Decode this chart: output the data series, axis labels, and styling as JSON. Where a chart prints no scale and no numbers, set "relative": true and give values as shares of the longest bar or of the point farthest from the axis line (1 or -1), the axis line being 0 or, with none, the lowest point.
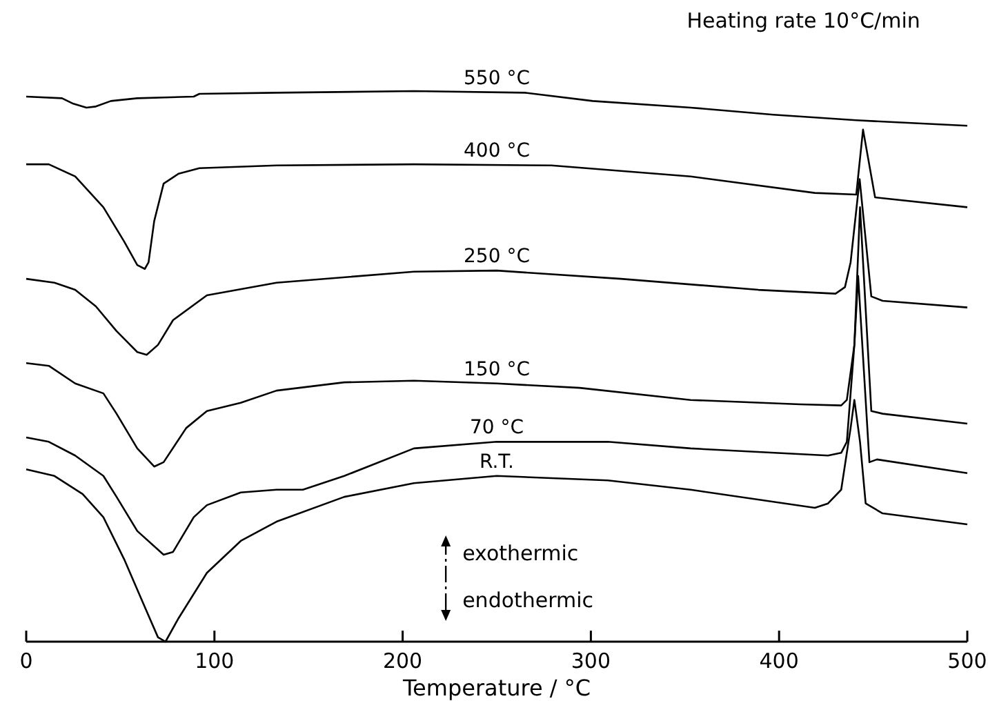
{
  "chart_data": {
    "type": "line",
    "relative": true,
    "xlabel": "Temperature / °C",
    "xlim": [
      0,
      500
    ],
    "xticks": [
      0,
      100,
      200,
      300,
      400,
      500
    ],
    "marker": "none",
    "line_style": "solid",
    "annotations": [
      "Heating rate 10°C/min",
      "exothermic",
      "endothermic"
    ],
    "series": [
      {
        "name": "550 °C",
        "color": "#000000",
        "x": [
          0,
          19,
          25,
          32,
          37,
          45,
          59,
          89,
          92,
          133,
          206,
          265,
          301,
          353,
          397,
          441,
          500
        ],
        "values": [
          0.99,
          0.987,
          0.977,
          0.97,
          0.972,
          0.982,
          0.987,
          0.99,
          0.995,
          0.997,
          1.0,
          0.997,
          0.982,
          0.97,
          0.957,
          0.947,
          0.937
        ]
      },
      {
        "name": "400 °C",
        "color": "#000000",
        "x": [
          0,
          12,
          26,
          41,
          52,
          59,
          63,
          65,
          68,
          73,
          81,
          92,
          133,
          206,
          279,
          353,
          419,
          441,
          444.6,
          451,
          500
        ],
        "values": [
          0.867,
          0.867,
          0.845,
          0.789,
          0.727,
          0.684,
          0.677,
          0.689,
          0.764,
          0.832,
          0.85,
          0.86,
          0.865,
          0.867,
          0.865,
          0.845,
          0.815,
          0.812,
          0.93,
          0.807,
          0.789
        ]
      },
      {
        "name": "250 °C",
        "color": "#000000",
        "x": [
          0,
          15,
          26,
          37,
          48,
          59,
          64,
          70,
          78,
          96,
          133,
          206,
          250,
          316,
          389,
          430,
          435,
          438,
          442.8,
          449,
          455,
          500
        ],
        "values": [
          0.659,
          0.652,
          0.639,
          0.609,
          0.564,
          0.526,
          0.521,
          0.539,
          0.584,
          0.629,
          0.652,
          0.672,
          0.674,
          0.659,
          0.639,
          0.632,
          0.644,
          0.689,
          0.84,
          0.627,
          0.619,
          0.607
        ]
      },
      {
        "name": "150 °C",
        "color": "#000000",
        "x": [
          0,
          12,
          26,
          41,
          48,
          59,
          68,
          73,
          85,
          96,
          114,
          133,
          169,
          206,
          250,
          294,
          353,
          411,
          433,
          436,
          440,
          443,
          449,
          455,
          500
        ],
        "values": [
          0.506,
          0.501,
          0.469,
          0.451,
          0.414,
          0.351,
          0.318,
          0.326,
          0.388,
          0.419,
          0.434,
          0.456,
          0.471,
          0.474,
          0.469,
          0.461,
          0.439,
          0.431,
          0.429,
          0.439,
          0.539,
          0.789,
          0.419,
          0.414,
          0.396
        ]
      },
      {
        "name": "70 °C",
        "color": "#000000",
        "x": [
          0,
          12,
          26,
          41,
          48,
          59,
          73,
          78,
          89,
          96,
          114,
          133,
          147,
          169,
          206,
          250,
          309,
          353,
          426,
          433,
          436,
          440,
          442,
          448,
          452,
          500
        ],
        "values": [
          0.371,
          0.363,
          0.338,
          0.301,
          0.263,
          0.201,
          0.158,
          0.163,
          0.226,
          0.248,
          0.271,
          0.276,
          0.276,
          0.301,
          0.351,
          0.363,
          0.363,
          0.351,
          0.338,
          0.343,
          0.363,
          0.539,
          0.664,
          0.326,
          0.331,
          0.306
        ]
      },
      {
        "name": "R.T.",
        "color": "#000000",
        "x": [
          0,
          15,
          30,
          41,
          52,
          63,
          70,
          74,
          81,
          96,
          114,
          133,
          169,
          206,
          250,
          309,
          353,
          419,
          426,
          433,
          438,
          440,
          443,
          446,
          455,
          500
        ],
        "values": [
          0.313,
          0.301,
          0.268,
          0.226,
          0.15,
          0.063,
          0.008,
          0,
          0.043,
          0.125,
          0.183,
          0.218,
          0.263,
          0.288,
          0.301,
          0.293,
          0.276,
          0.243,
          0.251,
          0.276,
          0.388,
          0.439,
          0.363,
          0.251,
          0.233,
          0.213
        ]
      }
    ]
  }
}
